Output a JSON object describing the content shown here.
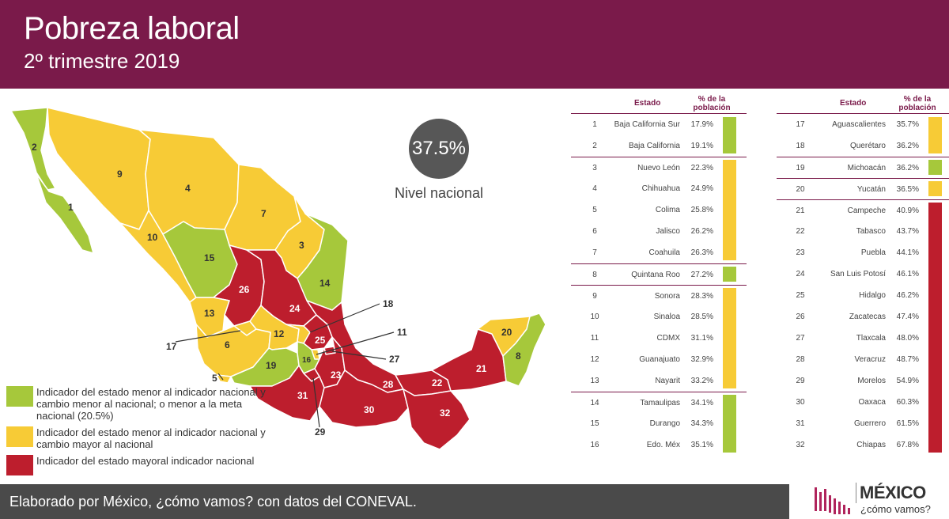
{
  "header": {
    "title": "Pobreza laboral",
    "subtitle": "2º trimestre 2019"
  },
  "national": {
    "value": "37.5%",
    "label": "Nivel nacional"
  },
  "colors": {
    "green": "#a6c83b",
    "yellow": "#f7cb36",
    "red": "#bd1e2d",
    "brand": "#7a1a4a"
  },
  "legend": [
    {
      "color": "green",
      "text": "Indicador del estado menor al indicador nacional y cambio menor al nacional; o menor a la meta nacional (20.5%)"
    },
    {
      "color": "yellow",
      "text": "Indicador del estado menor al indicador nacional y cambio mayor al nacional"
    },
    {
      "color": "red",
      "text": "Indicador del estado mayoral indicador nacional"
    }
  ],
  "table_headers": {
    "state": "Estado",
    "pct": "% de la población"
  },
  "table_left": [
    {
      "n": "1",
      "name": "Baja California Sur",
      "value": "17.9%",
      "group": "green"
    },
    {
      "n": "2",
      "name": "Baja California",
      "value": "19.1%",
      "group": "green"
    },
    {
      "n": "3",
      "name": "Nuevo León",
      "value": "22.3%",
      "group": "yellow"
    },
    {
      "n": "4",
      "name": "Chihuahua",
      "value": "24.9%",
      "group": "yellow"
    },
    {
      "n": "5",
      "name": "Colima",
      "value": "25.8%",
      "group": "yellow"
    },
    {
      "n": "6",
      "name": "Jalisco",
      "value": "26.2%",
      "group": "yellow"
    },
    {
      "n": "7",
      "name": "Coahuila",
      "value": "26.3%",
      "group": "yellow"
    },
    {
      "n": "8",
      "name": "Quintana Roo",
      "value": "27.2%",
      "group": "green"
    },
    {
      "n": "9",
      "name": "Sonora",
      "value": "28.3%",
      "group": "yellow"
    },
    {
      "n": "10",
      "name": "Sinaloa",
      "value": "28.5%",
      "group": "yellow"
    },
    {
      "n": "11",
      "name": "CDMX",
      "value": "31.1%",
      "group": "yellow"
    },
    {
      "n": "12",
      "name": "Guanajuato",
      "value": "32.9%",
      "group": "yellow"
    },
    {
      "n": "13",
      "name": "Nayarit",
      "value": "33.2%",
      "group": "yellow"
    },
    {
      "n": "14",
      "name": "Tamaulipas",
      "value": "34.1%",
      "group": "green"
    },
    {
      "n": "15",
      "name": "Durango",
      "value": "34.3%",
      "group": "green"
    },
    {
      "n": "16",
      "name": "Edo. Méx",
      "value": "35.1%",
      "group": "green"
    }
  ],
  "table_right": [
    {
      "n": "17",
      "name": "Aguascalientes",
      "value": "35.7%",
      "group": "yellow"
    },
    {
      "n": "18",
      "name": "Querétaro",
      "value": "36.2%",
      "group": "yellow"
    },
    {
      "n": "19",
      "name": "Michoacán",
      "value": "36.2%",
      "group": "green"
    },
    {
      "n": "20",
      "name": "Yucatán",
      "value": "36.5%",
      "group": "yellow"
    },
    {
      "n": "21",
      "name": "Campeche",
      "value": "40.9%",
      "group": "red"
    },
    {
      "n": "22",
      "name": "Tabasco",
      "value": "43.7%",
      "group": "red"
    },
    {
      "n": "23",
      "name": "Puebla",
      "value": "44.1%",
      "group": "red"
    },
    {
      "n": "24",
      "name": "San Luis Potosí",
      "value": "46.1%",
      "group": "red"
    },
    {
      "n": "25",
      "name": "Hidalgo",
      "value": "46.2%",
      "group": "red"
    },
    {
      "n": "26",
      "name": "Zacatecas",
      "value": "47.4%",
      "group": "red"
    },
    {
      "n": "27",
      "name": "Tlaxcala",
      "value": "48.0%",
      "group": "red"
    },
    {
      "n": "28",
      "name": "Veracruz",
      "value": "48.7%",
      "group": "red"
    },
    {
      "n": "29",
      "name": "Morelos",
      "value": "54.9%",
      "group": "red"
    },
    {
      "n": "30",
      "name": "Oaxaca",
      "value": "60.3%",
      "group": "red"
    },
    {
      "n": "31",
      "name": "Guerrero",
      "value": "61.5%",
      "group": "red"
    },
    {
      "n": "32",
      "name": "Chiapas",
      "value": "67.8%",
      "group": "red"
    }
  ],
  "footer": {
    "credit": "Elaborado por México, ¿cómo vamos? con datos del CONEVAL."
  },
  "logo": {
    "brand": "MÉXICO",
    "tag": "¿cómo vamos?"
  }
}
